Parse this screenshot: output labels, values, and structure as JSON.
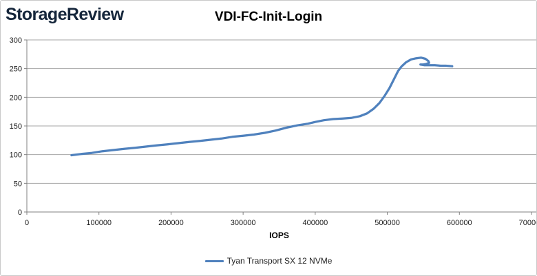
{
  "logo": {
    "text": "StorageReview",
    "color": "#15263b"
  },
  "chart_data": {
    "type": "line",
    "title": "VDI-FC-Init-Login",
    "xlabel": "IOPS",
    "ylabel": "",
    "xlim": [
      0,
      710000
    ],
    "ylim": [
      0,
      300
    ],
    "x_ticks": [
      0,
      100000,
      200000,
      300000,
      400000,
      500000,
      600000,
      700000
    ],
    "y_ticks": [
      0,
      50,
      100,
      150,
      200,
      250,
      300
    ],
    "grid": "horizontal",
    "legend_position": "bottom",
    "colors": {
      "line": "#4F81BD",
      "grid": "#a6a6a6",
      "axis": "#808080",
      "tick_text": "#1a1a1a",
      "title_text": "#000000"
    },
    "series": [
      {
        "name": "Tyan Transport SX 12 NVMe",
        "points": [
          [
            62000,
            99
          ],
          [
            75000,
            101
          ],
          [
            90000,
            103
          ],
          [
            105000,
            106
          ],
          [
            120000,
            108
          ],
          [
            135000,
            110
          ],
          [
            150000,
            112
          ],
          [
            165000,
            114
          ],
          [
            180000,
            116
          ],
          [
            195000,
            118
          ],
          [
            210000,
            120
          ],
          [
            225000,
            122
          ],
          [
            240000,
            124
          ],
          [
            255000,
            126
          ],
          [
            270000,
            128
          ],
          [
            285000,
            131
          ],
          [
            300000,
            133
          ],
          [
            315000,
            135
          ],
          [
            330000,
            138
          ],
          [
            345000,
            142
          ],
          [
            360000,
            147
          ],
          [
            375000,
            151
          ],
          [
            390000,
            154
          ],
          [
            400000,
            157
          ],
          [
            412000,
            160
          ],
          [
            425000,
            162
          ],
          [
            438000,
            163
          ],
          [
            450000,
            164
          ],
          [
            462000,
            167
          ],
          [
            472000,
            172
          ],
          [
            481000,
            180
          ],
          [
            489000,
            190
          ],
          [
            496000,
            202
          ],
          [
            503000,
            216
          ],
          [
            509000,
            231
          ],
          [
            515000,
            246
          ],
          [
            520000,
            254
          ],
          [
            526000,
            261
          ],
          [
            533000,
            266
          ],
          [
            540000,
            268
          ],
          [
            547000,
            269
          ],
          [
            553000,
            267
          ],
          [
            557000,
            263
          ],
          [
            558000,
            260
          ],
          [
            554000,
            258
          ],
          [
            549000,
            257
          ],
          [
            546000,
            257
          ],
          [
            551000,
            256
          ],
          [
            558000,
            256
          ],
          [
            566000,
            256
          ],
          [
            574000,
            255
          ],
          [
            581000,
            255
          ],
          [
            586000,
            254.5
          ],
          [
            590000,
            254
          ]
        ]
      }
    ]
  }
}
